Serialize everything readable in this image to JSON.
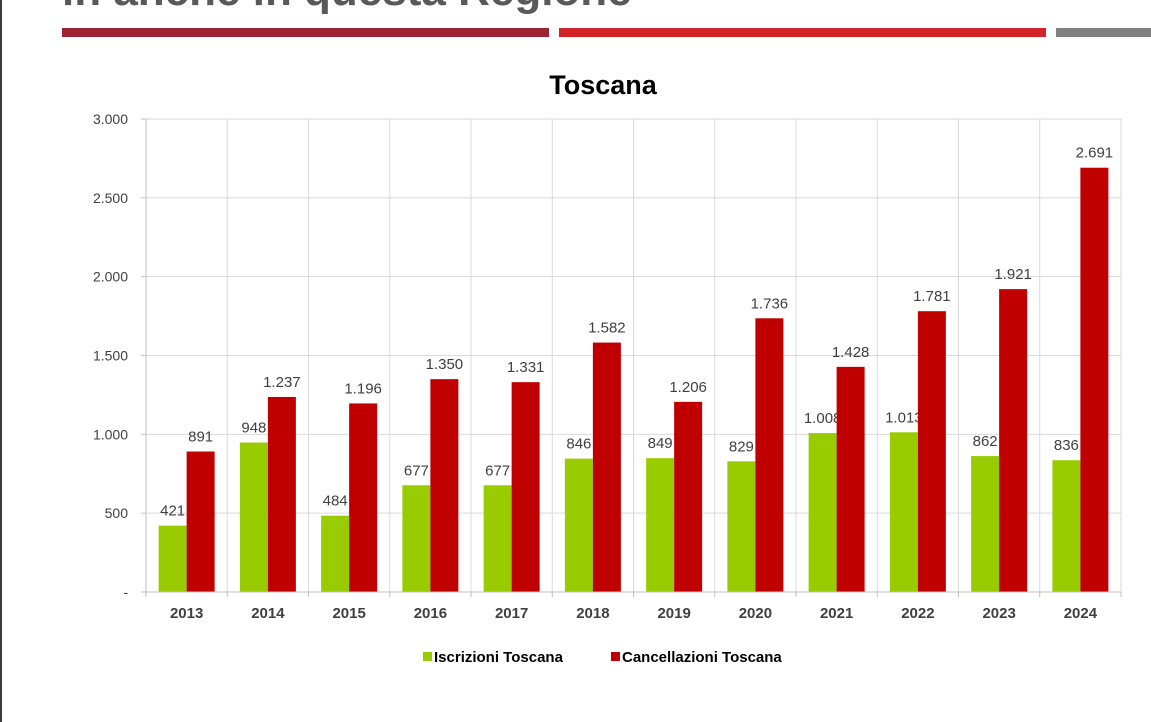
{
  "header": {
    "heading_partial": "in anche in questa Regione",
    "band_colors": [
      "#9b2335",
      "#d2232a",
      "#808080"
    ]
  },
  "chart_data": {
    "type": "bar",
    "title": "Toscana",
    "categories": [
      "2013",
      "2014",
      "2015",
      "2016",
      "2017",
      "2018",
      "2019",
      "2020",
      "2021",
      "2022",
      "2023",
      "2024"
    ],
    "series": [
      {
        "name": "Iscrizioni Toscana",
        "color": "#99cc00",
        "values": [
          421,
          948,
          484,
          677,
          677,
          846,
          849,
          829,
          1008,
          1013,
          862,
          836
        ],
        "labels": [
          "421",
          "948",
          "484",
          "677",
          "677",
          "846",
          "849",
          "829",
          "1.008",
          "1.013",
          "862",
          "836"
        ]
      },
      {
        "name": "Cancellazioni Toscana",
        "color": "#c00000",
        "values": [
          891,
          1237,
          1196,
          1350,
          1331,
          1582,
          1206,
          1736,
          1428,
          1781,
          1921,
          2691
        ],
        "labels": [
          "891",
          "1.237",
          "1.196",
          "1.350",
          "1.331",
          "1.582",
          "1.206",
          "1.736",
          "1.428",
          "1.781",
          "1.921",
          "2.691"
        ]
      }
    ],
    "ylim": [
      0,
      3000
    ],
    "yticks": [
      0,
      500,
      1000,
      1500,
      2000,
      2500,
      3000
    ],
    "ytick_labels": [
      "-",
      "500",
      "1.000",
      "1.500",
      "2.000",
      "2.500",
      "3.000"
    ],
    "grid": true,
    "legend_position": "bottom"
  }
}
